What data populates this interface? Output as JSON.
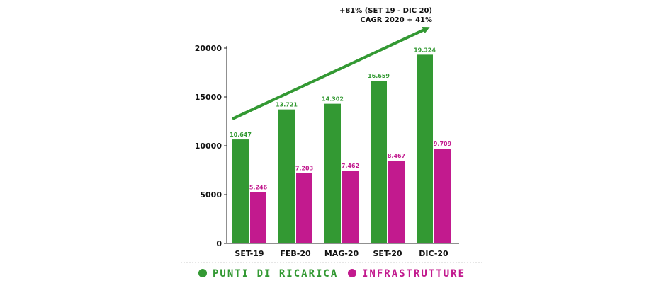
{
  "colors": {
    "green": "#339933",
    "magenta": "#c21a8e",
    "axis": "#222222",
    "arrow": "#339933"
  },
  "annotation": {
    "line1": "+81% (SET 19 - DIC 20)",
    "line2": "CAGR 2020 + 41%"
  },
  "chart_data": {
    "type": "bar",
    "categories": [
      "SET-19",
      "FEB-20",
      "MAG-20",
      "SET-20",
      "DIC-20"
    ],
    "series": [
      {
        "name": "PUNTI DI RICARICA",
        "values": [
          10647,
          13721,
          14302,
          16659,
          19324
        ],
        "labels": [
          "10.647",
          "13.721",
          "14.302",
          "16.659",
          "19.324"
        ]
      },
      {
        "name": "INFRASTRUTTURE",
        "values": [
          5246,
          7203,
          7462,
          8467,
          9709
        ],
        "labels": [
          "5.246",
          "7.203",
          "7.462",
          "8.467",
          "9.709"
        ]
      }
    ],
    "yticks": [
      0,
      5000,
      10000,
      15000,
      20000
    ],
    "ylim": [
      0,
      20000
    ],
    "legend": "bottom",
    "grid": false
  }
}
